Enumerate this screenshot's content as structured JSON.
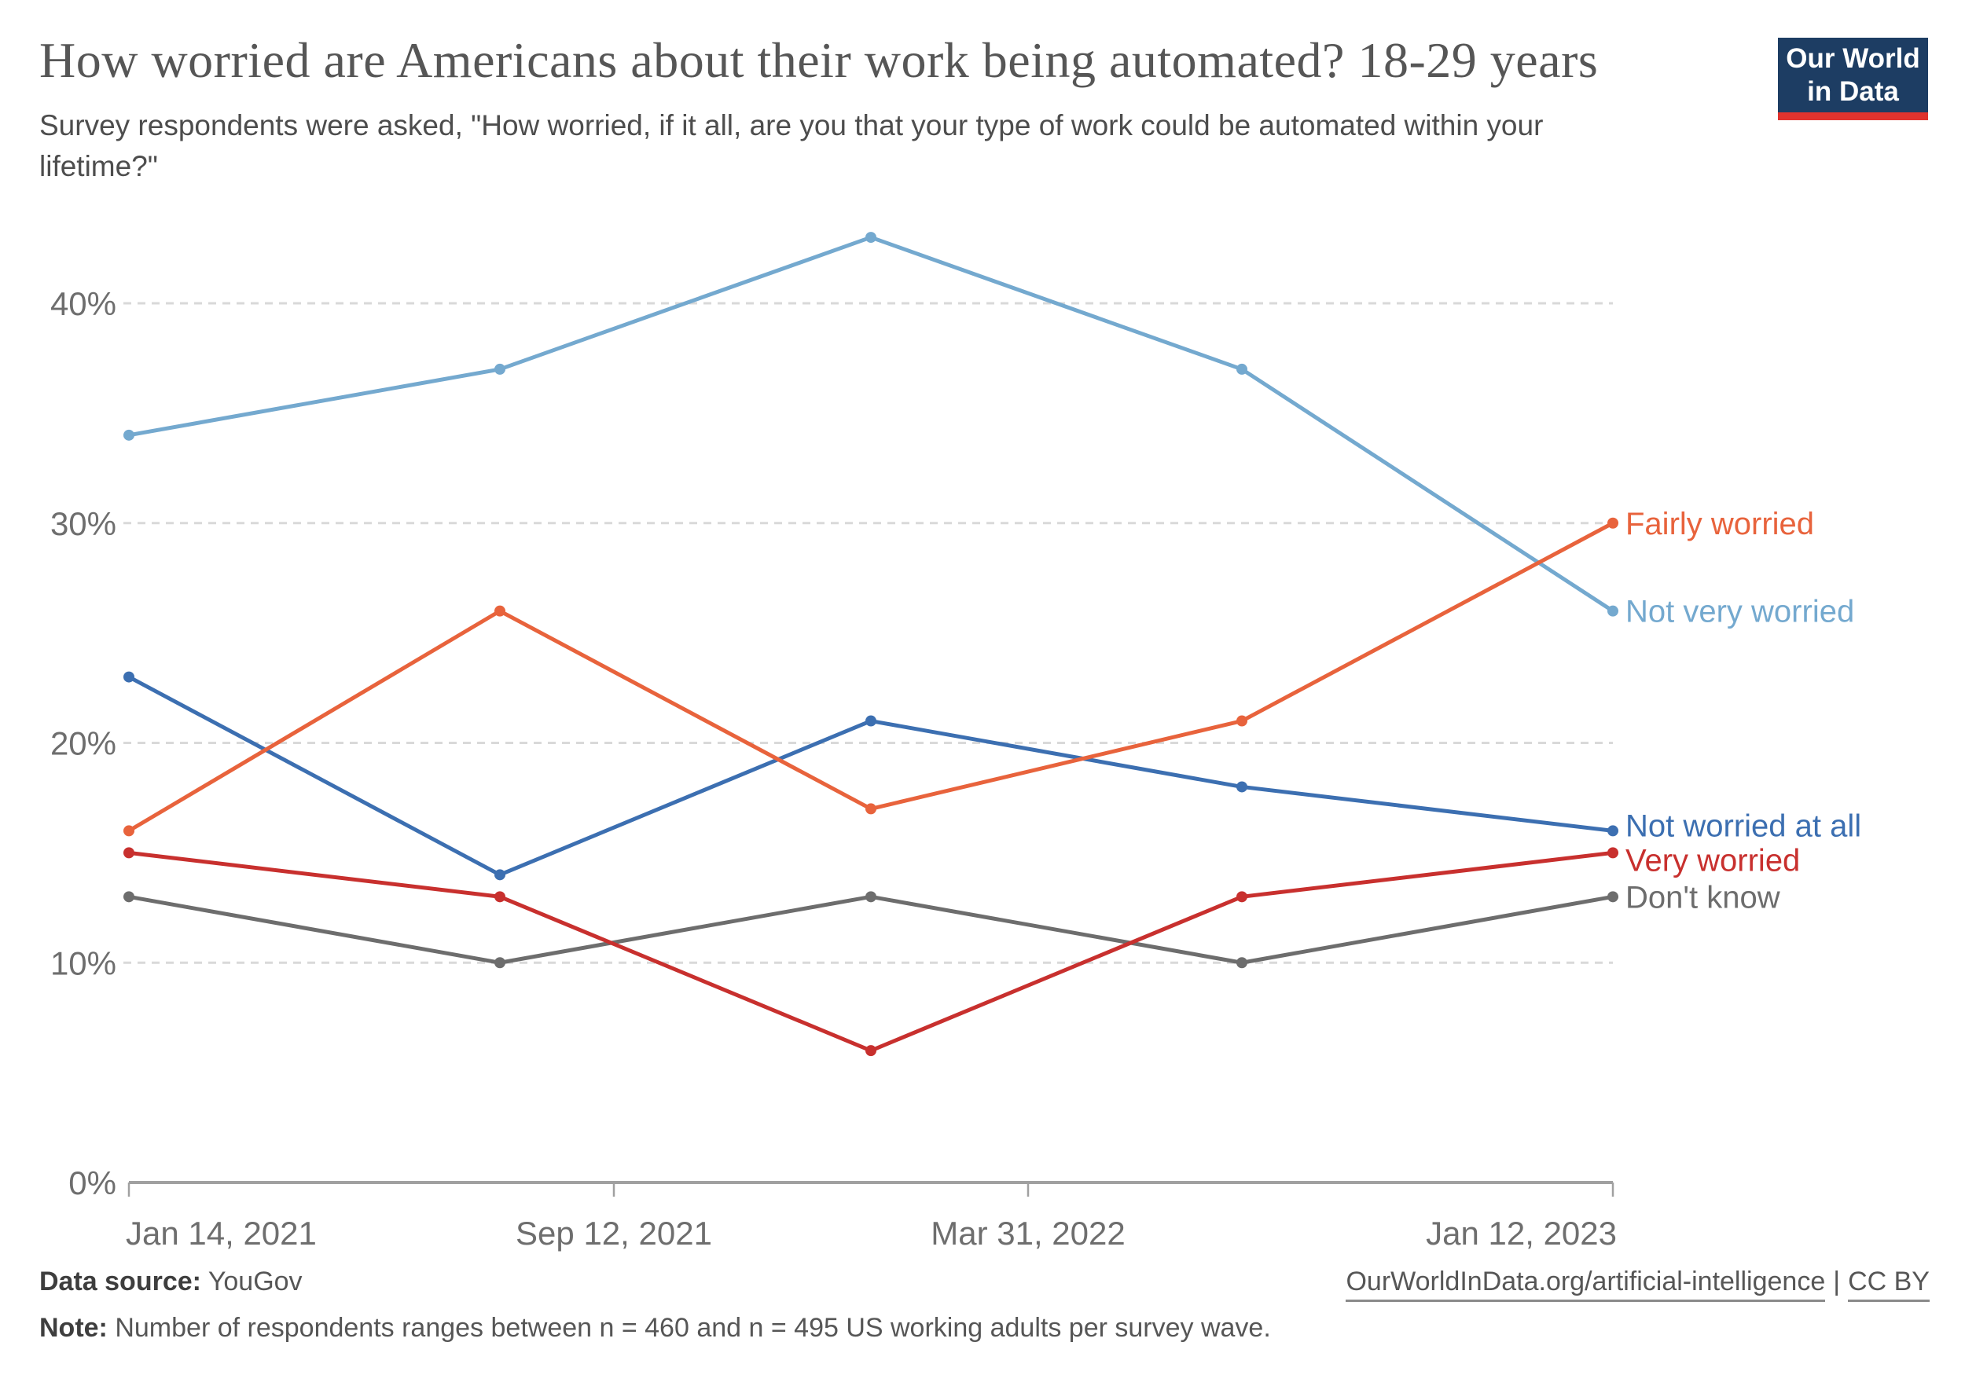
{
  "header": {
    "subtitle_lines": [
      "Survey respondents were asked, \"How worried, if it all, are you that your type of work could be automated within your",
      "lifetime?\""
    ],
    "logo": {
      "line1": "Our World",
      "line2": "in Data",
      "bg_color": "#1D3D63",
      "bar_color": "#E0332E"
    }
  },
  "chart_data": {
    "type": "line",
    "title": "How worried are Americans about their work being automated? 18-29 years",
    "x_tick_labels": [
      "Jan 14, 2021",
      "Sep 12, 2021",
      "Mar 31, 2022",
      "Jan 12, 2023"
    ],
    "y_tick_labels": [
      "0%",
      "10%",
      "20%",
      "30%",
      "40%"
    ],
    "y_tick_values": [
      0,
      10,
      20,
      30,
      40
    ],
    "ylim": [
      0,
      45
    ],
    "grid": "dashed horizontal gridlines",
    "legend_position": "labels at right end of each line",
    "grid_color": "#D9D9D9",
    "axis_color": "#A0A0A0",
    "axis_label_color": "#6E6E6E",
    "series": [
      {
        "name": "Fairly worried",
        "color": "#E8633C",
        "values": [
          16,
          26,
          17,
          21,
          30
        ]
      },
      {
        "name": "Not very worried",
        "color": "#74A9CF",
        "values": [
          34,
          37,
          43,
          37,
          26
        ]
      },
      {
        "name": "Not worried at all",
        "color": "#3C6FB1",
        "values": [
          23,
          14,
          21,
          18,
          16
        ]
      },
      {
        "name": "Very worried",
        "color": "#C8302E",
        "values": [
          15,
          13,
          6,
          13,
          15
        ]
      },
      {
        "name": "Don't know",
        "color": "#6D6D6D",
        "values": [
          13,
          10,
          13,
          10,
          13
        ]
      }
    ]
  },
  "footer": {
    "source_label": "Data source:",
    "source_value": "YouGov",
    "url": "OurWorldInData.org/artificial-intelligence",
    "separator": "|",
    "license": "CC BY",
    "note_label": "Note:",
    "note_text": "Number of respondents ranges between n = 460 and n = 495 US working adults per survey wave."
  }
}
